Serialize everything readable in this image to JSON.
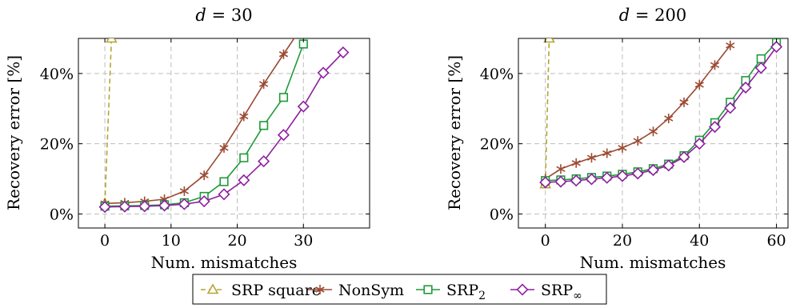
{
  "chart_data": [
    {
      "type": "line",
      "title": "d = 30",
      "title_var": "d",
      "title_val": "30",
      "xlabel": "Num. mismatches",
      "ylabel": "Recovery error [%]",
      "xlim": [
        -4,
        40
      ],
      "ylim": [
        -4,
        50
      ],
      "xticks": [
        0,
        10,
        20,
        30
      ],
      "yticks": [
        0,
        20,
        40
      ],
      "grid": true,
      "series": [
        {
          "name": "SRP square",
          "x": [
            0,
            1
          ],
          "y": [
            3,
            50
          ]
        },
        {
          "name": "NonSym",
          "x": [
            0,
            3,
            6,
            9,
            12,
            15,
            18,
            21,
            24,
            27,
            30
          ],
          "y": [
            3.0,
            3.2,
            3.6,
            4.2,
            6.5,
            11.0,
            18.8,
            27.8,
            37.0,
            45.5,
            54
          ]
        },
        {
          "name": "SRP₂",
          "x": [
            0,
            3,
            6,
            9,
            12,
            15,
            18,
            21,
            24,
            27,
            30
          ],
          "y": [
            2.2,
            2.3,
            2.4,
            2.6,
            3.2,
            5.0,
            9.2,
            16.0,
            25.2,
            33.2,
            48.4
          ]
        },
        {
          "name": "SRP∞",
          "x": [
            0,
            3,
            6,
            9,
            12,
            15,
            18,
            21,
            24,
            27,
            30,
            33,
            36
          ],
          "y": [
            2.0,
            2.1,
            2.2,
            2.4,
            2.8,
            3.6,
            5.6,
            9.6,
            15.0,
            22.5,
            30.6,
            40.2,
            46.0
          ]
        }
      ]
    },
    {
      "type": "line",
      "title": "d = 200",
      "title_var": "d",
      "title_val": "200",
      "xlabel": "Num. mismatches",
      "ylabel": "Recovery error [%]",
      "xlim": [
        -7,
        63
      ],
      "ylim": [
        -4,
        50
      ],
      "xticks": [
        0,
        20,
        40,
        60
      ],
      "yticks": [
        0,
        20,
        40
      ],
      "grid": true,
      "series": [
        {
          "name": "SRP square",
          "x": [
            0,
            1
          ],
          "y": [
            8.5,
            50
          ]
        },
        {
          "name": "NonSym",
          "x": [
            0,
            4,
            8,
            12,
            16,
            20,
            24,
            28,
            32,
            36,
            40,
            44,
            48
          ],
          "y": [
            10.0,
            12.8,
            14.5,
            16.0,
            17.3,
            18.8,
            20.8,
            23.5,
            27.2,
            31.8,
            36.8,
            42.4,
            48.0
          ]
        },
        {
          "name": "SRP₂",
          "x": [
            0,
            4,
            8,
            12,
            16,
            20,
            24,
            28,
            32,
            36,
            40,
            44,
            48,
            52,
            56,
            60
          ],
          "y": [
            9.5,
            9.7,
            10.0,
            10.4,
            10.8,
            11.3,
            12.0,
            12.9,
            14.2,
            16.6,
            21.0,
            26.0,
            31.8,
            38.0,
            44.2,
            48.8
          ]
        },
        {
          "name": "SRP∞",
          "x": [
            0,
            4,
            8,
            12,
            16,
            20,
            24,
            28,
            32,
            36,
            40,
            44,
            48,
            52,
            56,
            60
          ],
          "y": [
            9.0,
            9.2,
            9.5,
            9.9,
            10.3,
            10.8,
            11.5,
            12.5,
            13.8,
            16.2,
            20.0,
            24.8,
            30.2,
            36.0,
            41.6,
            47.6
          ]
        }
      ]
    }
  ],
  "legend": {
    "placement": "bottom-center",
    "entries": [
      {
        "label": "SRP square",
        "base": "SRP square",
        "sub": ""
      },
      {
        "label": "NonSym",
        "base": "NonSym",
        "sub": ""
      },
      {
        "label": "SRP₂",
        "base": "SRP",
        "sub": "2"
      },
      {
        "label": "SRP∞",
        "base": "SRP",
        "sub": "∞"
      }
    ]
  },
  "style": {
    "colors": {
      "SRP square": "#b5a532",
      "NonSym": "#9c4a33",
      "SRP₂": "#1f9a3a",
      "SRP∞": "#8e1fa0"
    },
    "markers": {
      "SRP square": "triangle",
      "NonSym": "star",
      "SRP₂": "square",
      "SRP∞": "diamond"
    }
  }
}
